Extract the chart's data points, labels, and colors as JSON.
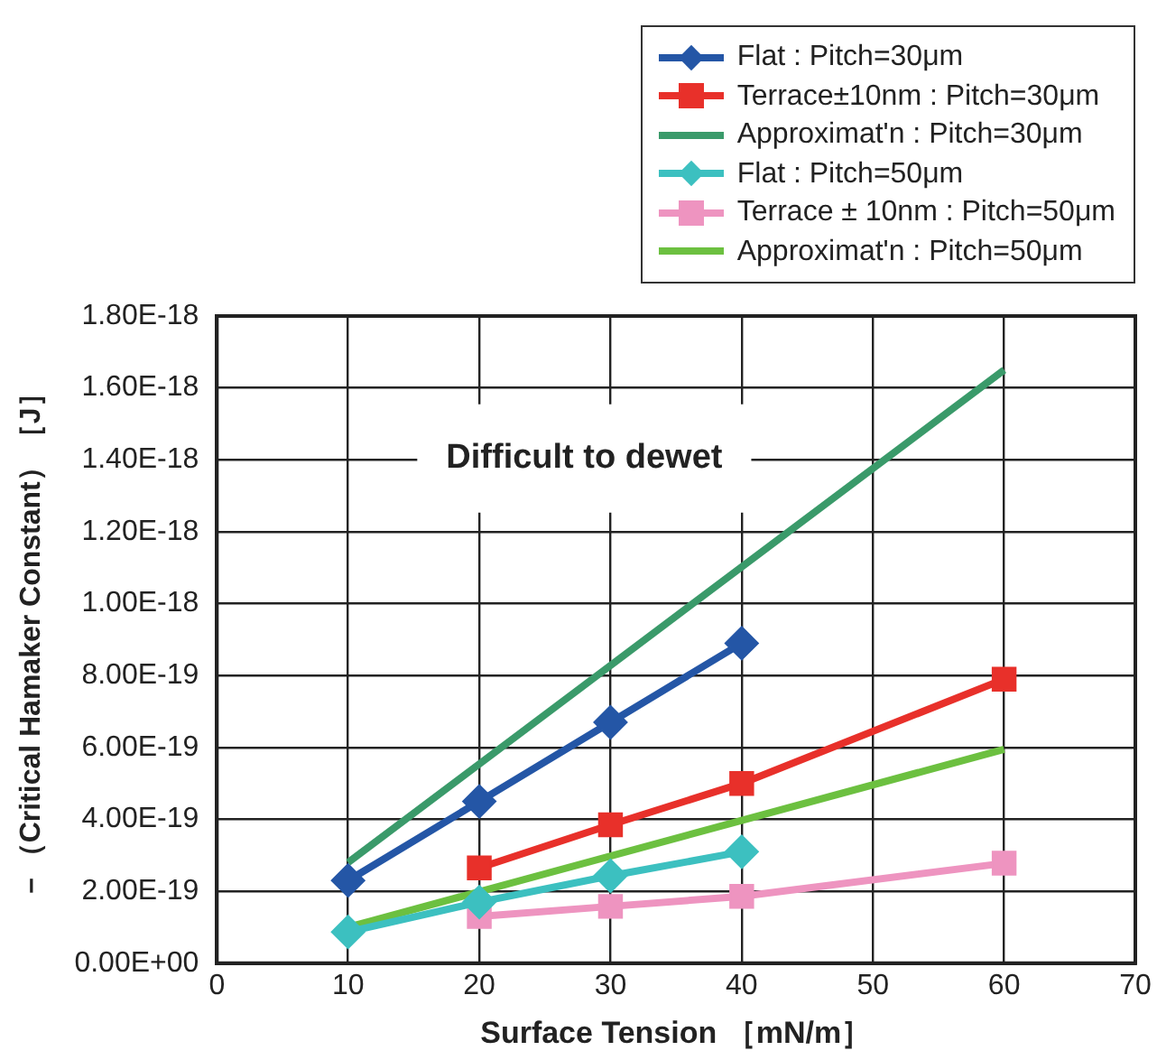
{
  "chart_data": {
    "type": "line",
    "xlabel": "Surface Tension ［mN/m］",
    "ylabel": "－（Critical Hamaker Constant）［J］",
    "annotations": [
      "Difficult to dewet"
    ],
    "xlim": [
      0,
      70
    ],
    "xticks": [
      0,
      10,
      20,
      30,
      40,
      50,
      60,
      70
    ],
    "ylim": [
      0,
      1.8e-18
    ],
    "yticks": [
      {
        "value": 0,
        "label": "0.00E+00"
      },
      {
        "value": 2e-19,
        "label": "2.00E-19"
      },
      {
        "value": 4e-19,
        "label": "4.00E-19"
      },
      {
        "value": 6e-19,
        "label": "6.00E-19"
      },
      {
        "value": 8e-19,
        "label": "8.00E-19"
      },
      {
        "value": 1e-18,
        "label": "1.00E-18"
      },
      {
        "value": 1.2e-18,
        "label": "1.20E-18"
      },
      {
        "value": 1.4e-18,
        "label": "1.40E-18"
      },
      {
        "value": 1.6e-18,
        "label": "1.60E-18"
      },
      {
        "value": 1.8e-18,
        "label": "1.80E-18"
      }
    ],
    "grid": true,
    "legend": "top right",
    "series": [
      {
        "name": "Flat : Pitch=30μm",
        "color": "#2456a6",
        "marker": "diamond",
        "x": [
          10,
          20,
          30,
          40
        ],
        "values": [
          2.3e-19,
          4.5e-19,
          6.7e-19,
          8.9e-19
        ]
      },
      {
        "name": "Terrace±10nm : Pitch=30μm",
        "color": "#e8302a",
        "marker": "square",
        "x": [
          20,
          30,
          40,
          60
        ],
        "values": [
          2.65e-19,
          3.85e-19,
          5e-19,
          7.9e-19
        ]
      },
      {
        "name": "Approximat'n : Pitch=30μm",
        "color": "#3a9a6a",
        "marker": "none",
        "x": [
          10,
          60
        ],
        "values": [
          2.8e-19,
          1.65e-18
        ]
      },
      {
        "name": "Flat : Pitch=50μm",
        "color": "#3cc0c0",
        "marker": "diamond",
        "x": [
          10,
          20,
          30,
          40
        ],
        "values": [
          8.7e-20,
          1.7e-19,
          2.43e-19,
          3.1e-19
        ]
      },
      {
        "name": "Terrace ± 10nm : Pitch=50μm",
        "color": "#ee94c0",
        "marker": "square",
        "x": [
          20,
          30,
          40,
          60
        ],
        "values": [
          1.3e-19,
          1.58e-19,
          1.86e-19,
          2.78e-19
        ]
      },
      {
        "name": "Approximat'n : Pitch=50μm",
        "color": "#6cc040",
        "marker": "none",
        "x": [
          10,
          60
        ],
        "values": [
          1e-19,
          5.95e-19
        ]
      }
    ]
  }
}
